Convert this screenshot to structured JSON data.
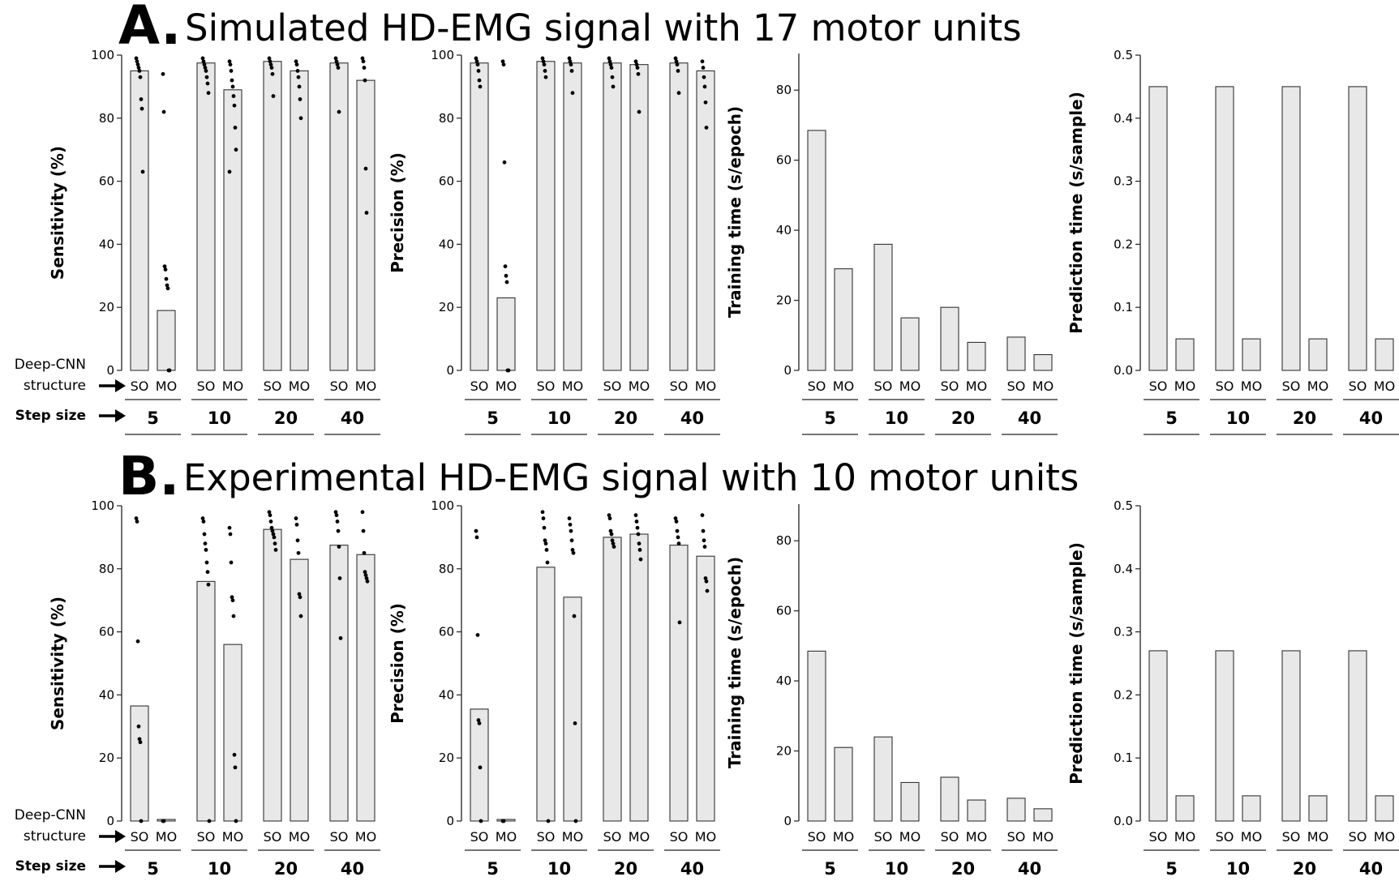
{
  "panels": [
    {
      "letter": "A.",
      "title": "Simulated HD-EMG signal with 17 motor units"
    },
    {
      "letter": "B.",
      "title": "Experimental HD-EMG signal with 10 motor units"
    }
  ],
  "row_labels": {
    "structure_line1": "Deep-CNN",
    "structure_line2": "structure",
    "step": "Step size"
  },
  "colors": {
    "bar_fill": "#e8e8e8",
    "bar_stroke": "#333333",
    "dot": "#000000"
  },
  "chart_data": [
    {
      "panel": "A",
      "type": "bar",
      "ylabel": "Sensitivity (%)",
      "ylim": [
        0,
        100
      ],
      "yticks": [
        0,
        20,
        40,
        60,
        80,
        100
      ],
      "groups": [
        "5",
        "10",
        "20",
        "40"
      ],
      "conditions": [
        "SO",
        "MO"
      ],
      "series": [
        {
          "name": "SO",
          "values": [
            95,
            97.5,
            98,
            97.5
          ]
        },
        {
          "name": "MO",
          "values": [
            19,
            89,
            95,
            92
          ]
        }
      ],
      "points": [
        [
          [
            99,
            98,
            97,
            96,
            95,
            93,
            86,
            83,
            63
          ],
          [
            94,
            82,
            33,
            32,
            29,
            27,
            26,
            0,
            0
          ]
        ],
        [
          [
            99,
            98,
            97,
            96,
            95,
            93,
            91,
            88
          ],
          [
            98,
            97,
            95,
            92,
            90,
            87,
            84,
            77,
            70,
            63
          ]
        ],
        [
          [
            99,
            98,
            97,
            96,
            94,
            87
          ],
          [
            98,
            97,
            95,
            93,
            90,
            86,
            80
          ]
        ],
        [
          [
            99,
            98,
            97,
            96,
            82
          ],
          [
            99,
            98,
            96,
            92,
            64,
            50
          ]
        ]
      ]
    },
    {
      "panel": "A",
      "type": "bar",
      "ylabel": "Precision (%)",
      "ylim": [
        0,
        100
      ],
      "yticks": [
        0,
        20,
        40,
        60,
        80,
        100
      ],
      "groups": [
        "5",
        "10",
        "20",
        "40"
      ],
      "conditions": [
        "SO",
        "MO"
      ],
      "series": [
        {
          "name": "SO",
          "values": [
            97.5,
            98,
            97.5,
            97.5
          ]
        },
        {
          "name": "MO",
          "values": [
            23,
            97.5,
            97,
            95
          ]
        }
      ],
      "points": [
        [
          [
            99,
            98,
            97,
            95,
            92,
            90
          ],
          [
            98,
            97,
            66,
            33,
            30,
            28,
            0,
            0
          ]
        ],
        [
          [
            99,
            98,
            97,
            95,
            93
          ],
          [
            99,
            98,
            97,
            95,
            88
          ]
        ],
        [
          [
            99,
            98,
            97,
            96,
            93,
            90
          ],
          [
            98,
            97,
            96,
            94,
            82
          ]
        ],
        [
          [
            99,
            98,
            97,
            95,
            88
          ],
          [
            98,
            96,
            93,
            90,
            85,
            77
          ]
        ]
      ]
    },
    {
      "panel": "A",
      "type": "bar",
      "ylabel": "Training time (s/epoch)",
      "ylim": [
        0,
        90
      ],
      "yticks": [
        0,
        20,
        40,
        60,
        80
      ],
      "groups": [
        "5",
        "10",
        "20",
        "40"
      ],
      "conditions": [
        "SO",
        "MO"
      ],
      "series": [
        {
          "name": "SO",
          "values": [
            68.5,
            36,
            18,
            9.5
          ]
        },
        {
          "name": "MO",
          "values": [
            29,
            15,
            8,
            4.5
          ]
        }
      ]
    },
    {
      "panel": "A",
      "type": "bar",
      "ylabel": "Prediction time (s/sample)",
      "ylim": [
        0,
        0.5
      ],
      "yticks": [
        "0.0",
        "0.1",
        "0.2",
        "0.3",
        "0.4",
        "0.5"
      ],
      "groups": [
        "5",
        "10",
        "20",
        "40"
      ],
      "conditions": [
        "SO",
        "MO"
      ],
      "series": [
        {
          "name": "SO",
          "values": [
            0.45,
            0.45,
            0.45,
            0.45
          ]
        },
        {
          "name": "MO",
          "values": [
            0.05,
            0.05,
            0.05,
            0.05
          ]
        }
      ]
    },
    {
      "panel": "B",
      "type": "bar",
      "ylabel": "Sensitivity (%)",
      "ylim": [
        0,
        100
      ],
      "yticks": [
        0,
        20,
        40,
        60,
        80,
        100
      ],
      "groups": [
        "5",
        "10",
        "20",
        "40"
      ],
      "conditions": [
        "SO",
        "MO"
      ],
      "series": [
        {
          "name": "SO",
          "values": [
            36.5,
            76,
            92.5,
            87.5
          ]
        },
        {
          "name": "MO",
          "values": [
            0.5,
            56,
            83,
            84.5
          ]
        }
      ],
      "points": [
        [
          [
            96,
            95,
            57,
            30,
            26,
            25,
            0
          ],
          [
            0,
            0
          ]
        ],
        [
          [
            96,
            95,
            91,
            88,
            86,
            82,
            79,
            75,
            0
          ],
          [
            93,
            91,
            82,
            71,
            70,
            65,
            21,
            17,
            0
          ]
        ],
        [
          [
            98,
            97,
            95,
            93,
            92,
            91,
            90,
            88,
            86
          ],
          [
            96,
            94,
            89,
            85,
            72,
            71,
            65
          ]
        ],
        [
          [
            98,
            97,
            95,
            92,
            87,
            77,
            58
          ],
          [
            98,
            92,
            85,
            79,
            78,
            77,
            76
          ]
        ]
      ]
    },
    {
      "panel": "B",
      "type": "bar",
      "ylabel": "Precision (%)",
      "ylim": [
        0,
        100
      ],
      "yticks": [
        0,
        20,
        40,
        60,
        80,
        100
      ],
      "groups": [
        "5",
        "10",
        "20",
        "40"
      ],
      "conditions": [
        "SO",
        "MO"
      ],
      "series": [
        {
          "name": "SO",
          "values": [
            35.5,
            80.5,
            90,
            87.5
          ]
        },
        {
          "name": "MO",
          "values": [
            0.5,
            71,
            91,
            84
          ]
        }
      ],
      "points": [
        [
          [
            92,
            90,
            59,
            32,
            31,
            17,
            0
          ],
          [
            0,
            0
          ]
        ],
        [
          [
            98,
            96,
            93,
            89,
            88,
            86,
            82,
            0
          ],
          [
            96,
            94,
            92,
            89,
            86,
            85,
            65,
            31,
            0
          ]
        ],
        [
          [
            97,
            96,
            92,
            91,
            89,
            88,
            87
          ],
          [
            97,
            95,
            93,
            91,
            88,
            86,
            83
          ]
        ],
        [
          [
            96,
            95,
            92,
            90,
            88,
            63
          ],
          [
            97,
            92,
            89,
            87,
            77,
            76,
            73
          ]
        ]
      ]
    },
    {
      "panel": "B",
      "type": "bar",
      "ylabel": "Training time (s/epoch)",
      "ylim": [
        0,
        90
      ],
      "yticks": [
        0,
        20,
        40,
        60,
        80
      ],
      "groups": [
        "5",
        "10",
        "20",
        "40"
      ],
      "conditions": [
        "SO",
        "MO"
      ],
      "series": [
        {
          "name": "SO",
          "values": [
            48.5,
            24,
            12.5,
            6.5
          ]
        },
        {
          "name": "MO",
          "values": [
            21,
            11,
            6,
            3.5
          ]
        }
      ]
    },
    {
      "panel": "B",
      "type": "bar",
      "ylabel": "Prediction time (s/sample)",
      "ylim": [
        0,
        0.5
      ],
      "yticks": [
        "0.0",
        "0.1",
        "0.2",
        "0.3",
        "0.4",
        "0.5"
      ],
      "groups": [
        "5",
        "10",
        "20",
        "40"
      ],
      "conditions": [
        "SO",
        "MO"
      ],
      "series": [
        {
          "name": "SO",
          "values": [
            0.27,
            0.27,
            0.27,
            0.27
          ]
        },
        {
          "name": "MO",
          "values": [
            0.04,
            0.04,
            0.04,
            0.04
          ]
        }
      ]
    }
  ]
}
